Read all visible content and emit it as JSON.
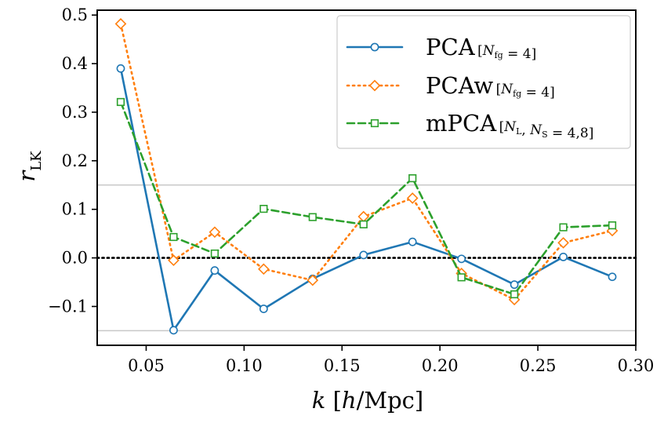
{
  "chart_data": {
    "type": "line",
    "xlabel": "k [h/Mpc]",
    "ylabel": "r_LK",
    "xlim": [
      0.025,
      0.3
    ],
    "ylim": [
      -0.18,
      0.51
    ],
    "xticks": [
      "0.05",
      "0.10",
      "0.15",
      "0.20",
      "0.25",
      "0.30"
    ],
    "xtick_values": [
      0.05,
      0.1,
      0.15,
      0.2,
      0.25,
      0.3
    ],
    "yticks": [
      "−0.1",
      "0.0",
      "0.1",
      "0.2",
      "0.3",
      "0.4",
      "0.5"
    ],
    "ytick_values": [
      -0.1,
      0.0,
      0.1,
      0.2,
      0.3,
      0.4,
      0.5
    ],
    "reference_lines": {
      "zero": 0.0,
      "upper": 0.15,
      "lower": -0.15
    },
    "legend_position": "top-right",
    "grid": false,
    "series": [
      {
        "name": "PCA",
        "legend_sub": "[N_fg = 4]",
        "color": "#1f77b4",
        "linestyle": "solid",
        "marker": "circle",
        "x": [
          0.037,
          0.064,
          0.085,
          0.11,
          0.135,
          0.161,
          0.186,
          0.211,
          0.238,
          0.263,
          0.288
        ],
        "y": [
          0.39,
          -0.149,
          -0.026,
          -0.105,
          -0.043,
          0.006,
          0.033,
          -0.002,
          -0.055,
          0.002,
          -0.039
        ]
      },
      {
        "name": "PCAw",
        "legend_sub": "[N_fg = 4]",
        "color": "#ff7f0e",
        "linestyle": "dotted",
        "marker": "diamond",
        "x": [
          0.037,
          0.064,
          0.085,
          0.11,
          0.135,
          0.161,
          0.186,
          0.211,
          0.238,
          0.263,
          0.288
        ],
        "y": [
          0.482,
          -0.005,
          0.053,
          -0.023,
          -0.046,
          0.085,
          0.123,
          -0.032,
          -0.086,
          0.031,
          0.056
        ]
      },
      {
        "name": "mPCA",
        "legend_sub": "[N_L, N_S = 4,8]",
        "color": "#2ca02c",
        "linestyle": "dashed",
        "marker": "square",
        "x": [
          0.037,
          0.064,
          0.085,
          0.11,
          0.135,
          0.161,
          0.186,
          0.211,
          0.238,
          0.263,
          0.288
        ],
        "y": [
          0.321,
          0.043,
          0.009,
          0.101,
          0.084,
          0.069,
          0.164,
          -0.04,
          -0.075,
          0.063,
          0.067
        ]
      }
    ]
  }
}
